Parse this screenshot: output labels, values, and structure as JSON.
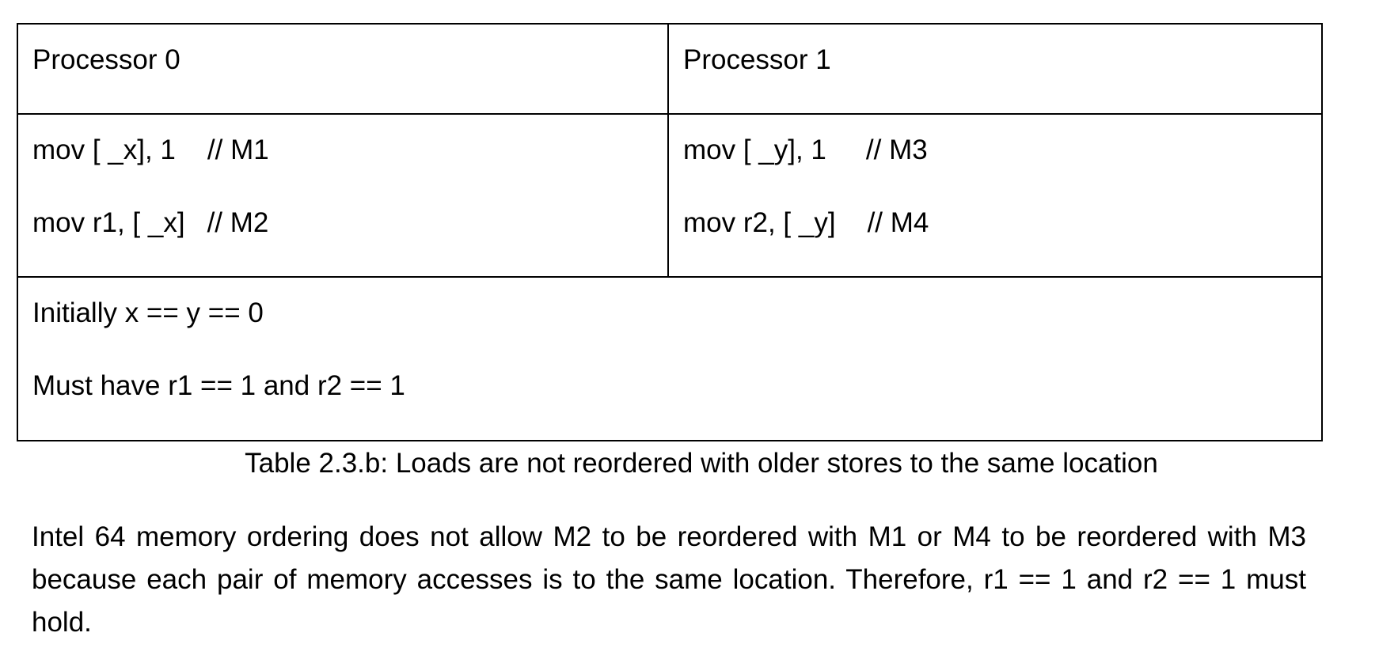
{
  "table": {
    "headers": [
      "Processor 0",
      "Processor 1"
    ],
    "processor0": {
      "line1": {
        "code": "mov [ _x], 1",
        "comment": "// M1"
      },
      "line2": {
        "code": "mov r1, [ _x]",
        "comment": "// M2"
      }
    },
    "processor1": {
      "line1": {
        "code": "mov [ _y], 1",
        "comment": "// M3"
      },
      "line2": {
        "code": "mov r2, [ _y]",
        "comment": "// M4"
      }
    },
    "notes": [
      "Initially x == y == 0",
      "Must have r1 == 1 and r2 == 1"
    ]
  },
  "caption": "Table 2.3.b: Loads are not reordered with older stores to the same location",
  "paragraph": "Intel 64 memory ordering does not allow M2 to be reordered with M1 or M4 to be reordered with M3 because each pair of memory accesses is to the same location. Therefore, r1 == 1 and r2 == 1 must hold."
}
